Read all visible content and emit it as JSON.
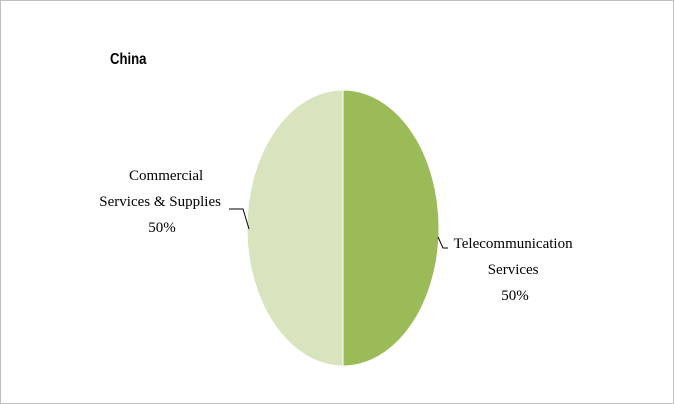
{
  "chart_data": {
    "type": "pie",
    "title": "China",
    "slices": [
      {
        "name": "Telecommunication Services",
        "label_lines": [
          "Telecommunication",
          "Services"
        ],
        "value": 50,
        "value_label": "50%",
        "color": "#9bbb59"
      },
      {
        "name": "Commercial Services & Supplies",
        "label_lines": [
          "Commercial",
          "Services & Supplies"
        ],
        "value": 50,
        "value_label": "50%",
        "color": "#d7e4bd"
      }
    ],
    "start": "12 o'clock",
    "direction": "clockwise",
    "legend": "none",
    "data_labels": "outside with leader lines"
  }
}
